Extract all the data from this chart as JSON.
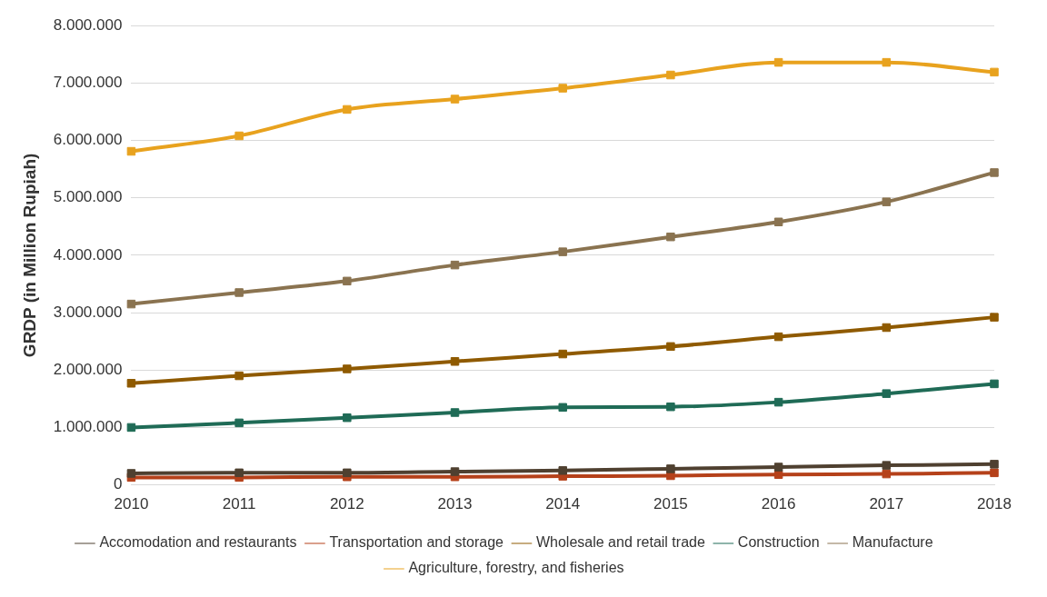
{
  "chart_data": {
    "type": "line",
    "ylabel": "GRDP (in Million Rupiah)",
    "categories": [
      "2010",
      "2011",
      "2012",
      "2013",
      "2014",
      "2015",
      "2016",
      "2017",
      "2018"
    ],
    "ylim": [
      0,
      8000000
    ],
    "yticks": [
      0,
      {
        "value": 1000000,
        "label": "1.000.000"
      },
      {
        "value": 2000000,
        "label": "2.000.000"
      },
      {
        "value": 3000000,
        "label": "3.000.000"
      },
      {
        "value": 4000000,
        "label": "4.000.000"
      },
      {
        "value": 5000000,
        "label": "5.000.000"
      },
      {
        "value": 6000000,
        "label": "6.000.000"
      },
      {
        "value": 7000000,
        "label": "7.000.000"
      },
      {
        "value": 8000000,
        "label": "8.000.000"
      }
    ],
    "grid": "y",
    "legend": "bottom",
    "marker": "square",
    "line_style": "solid",
    "series": [
      {
        "name": "Agriculture, forestry, and fisheries",
        "color": "#e8a21e",
        "values": [
          5810000,
          6080000,
          6540000,
          6720000,
          6910000,
          7140000,
          7360000,
          7360000,
          7190000
        ]
      },
      {
        "name": "Manufacture",
        "color": "#8a7350",
        "values": [
          3150000,
          3350000,
          3550000,
          3830000,
          4060000,
          4320000,
          4580000,
          4930000,
          5440000
        ]
      },
      {
        "name": "Construction",
        "color": "#1f6b56",
        "values": [
          1000000,
          1080000,
          1170000,
          1260000,
          1350000,
          1360000,
          1440000,
          1590000,
          1760000
        ]
      },
      {
        "name": "Wholesale and retail trade",
        "color": "#8f5a00",
        "values": [
          1770000,
          1900000,
          2020000,
          2150000,
          2280000,
          2410000,
          2580000,
          2740000,
          2920000
        ]
      },
      {
        "name": "Transportation and storage",
        "color": "#b5411a",
        "values": [
          130000,
          130000,
          140000,
          140000,
          150000,
          160000,
          180000,
          190000,
          210000
        ]
      },
      {
        "name": "Accomodation and restaurants",
        "color": "#4f4030",
        "values": [
          200000,
          210000,
          210000,
          230000,
          250000,
          280000,
          310000,
          340000,
          360000
        ]
      }
    ]
  }
}
